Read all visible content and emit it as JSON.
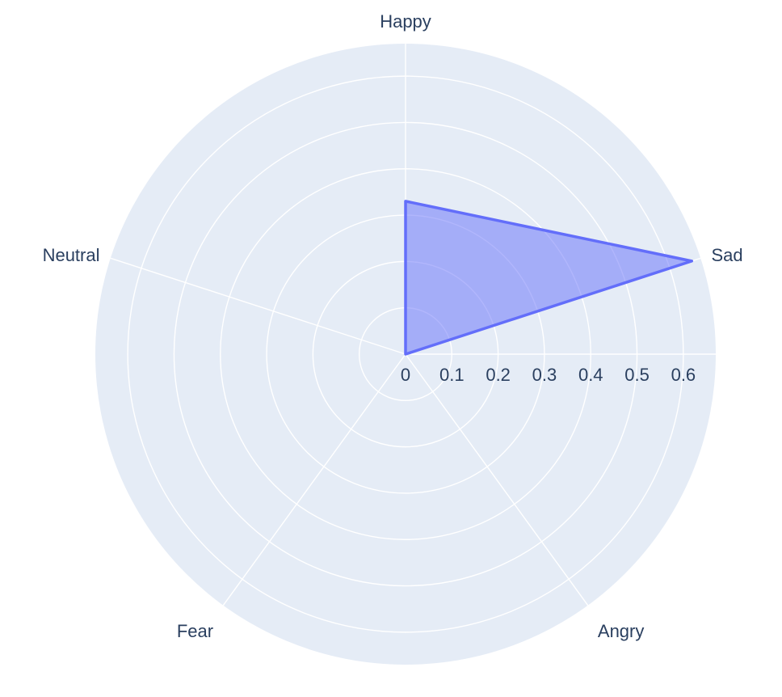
{
  "chart_data": {
    "type": "radar",
    "title": "",
    "categories": [
      "Happy",
      "Sad",
      "Angry",
      "Fear",
      "Neutral"
    ],
    "series": [
      {
        "values": [
          0.33,
          0.65,
          0.0,
          0.0,
          0.0
        ]
      }
    ],
    "radial_range": [
      0,
      0.67
    ],
    "radial_ticks": [
      "0",
      "0.1",
      "0.2",
      "0.3",
      "0.4",
      "0.5",
      "0.6"
    ],
    "radial_tick_values": [
      0,
      0.1,
      0.2,
      0.3,
      0.4,
      0.5,
      0.6
    ],
    "grid": true,
    "legend": "none",
    "colors": {
      "series": "#636efa",
      "background": "#e5ecf6",
      "grid": "#ffffff",
      "text": "#2a3f5f"
    }
  }
}
